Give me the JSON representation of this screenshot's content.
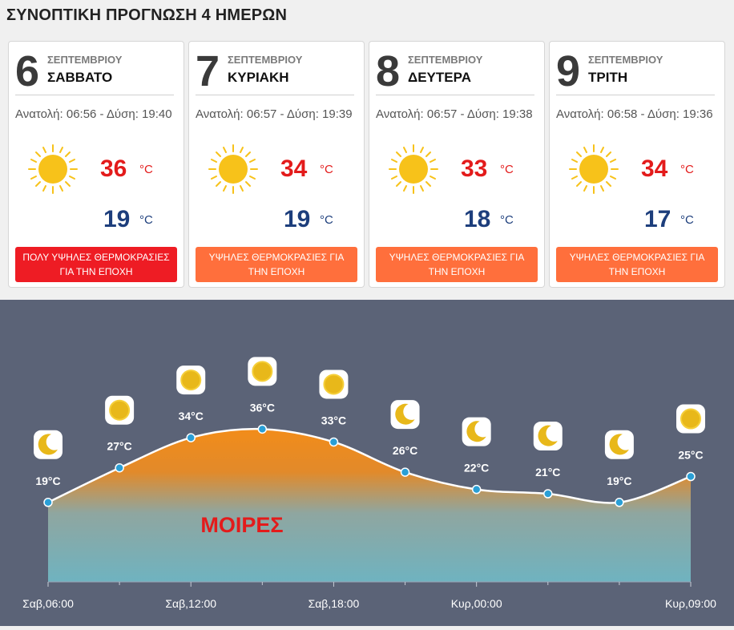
{
  "header": {
    "title": "ΣΥΝΟΠΤΙΚΗ ΠΡΟΓΝΩΣΗ 4 ΗΜΕΡΩΝ"
  },
  "days": [
    {
      "day": "6",
      "month": "ΣΕΠΤΕΜΒΡΙΟΥ",
      "weekday": "ΣΑΒΒΑΤΟ",
      "sun": "Ανατολή: 06:56 - Δύση: 19:40",
      "icon": "sun-icon",
      "max": "36",
      "min": "19",
      "unit": "°C",
      "warning": "ΠΟΛΥ ΥΨΗΛΕΣ ΘΕΡΜΟΚΡΑΣΙΕΣ ΓΙΑ ΤΗΝ ΕΠΟΧΗ",
      "warning_color": "#ee1c24"
    },
    {
      "day": "7",
      "month": "ΣΕΠΤΕΜΒΡΙΟΥ",
      "weekday": "ΚΥΡΙΑΚΗ",
      "sun": "Ανατολή: 06:57 - Δύση: 19:39",
      "icon": "sun-icon",
      "max": "34",
      "min": "19",
      "unit": "°C",
      "warning": "ΥΨΗΛΕΣ ΘΕΡΜΟΚΡΑΣΙΕΣ ΓΙΑ ΤΗΝ ΕΠΟΧΗ",
      "warning_color": "#ff6f3c"
    },
    {
      "day": "8",
      "month": "ΣΕΠΤΕΜΒΡΙΟΥ",
      "weekday": "ΔΕΥΤΕΡΑ",
      "sun": "Ανατολή: 06:57 - Δύση: 19:38",
      "icon": "sun-icon",
      "max": "33",
      "min": "18",
      "unit": "°C",
      "warning": "ΥΨΗΛΕΣ ΘΕΡΜΟΚΡΑΣΙΕΣ ΓΙΑ ΤΗΝ ΕΠΟΧΗ",
      "warning_color": "#ff6f3c"
    },
    {
      "day": "9",
      "month": "ΣΕΠΤΕΜΒΡΙΟΥ",
      "weekday": "ΤΡΙΤΗ",
      "sun": "Ανατολή: 06:58 - Δύση: 19:36",
      "icon": "sun-icon",
      "max": "34",
      "min": "17",
      "unit": "°C",
      "warning": "ΥΨΗΛΕΣ ΘΕΡΜΟΚΡΑΣΙΕΣ ΓΙΑ ΤΗΝ ΕΠΟΧΗ",
      "warning_color": "#ff6f3c"
    }
  ],
  "graph": {
    "watermark": "ΜΟΙΡΕΣ",
    "background": "#5b6377",
    "line_color": "#ffffff",
    "point_color": "#2a9fd6",
    "x_labels": [
      "Σαβ,06:00",
      "Σαβ,12:00",
      "Σαβ,18:00",
      "Κυρ,00:00",
      "Κυρ,09:00"
    ],
    "chart_data": {
      "type": "area",
      "x": [
        "Σαβ,06:00",
        "Σαβ,09:00",
        "Σαβ,12:00",
        "Σαβ,15:00",
        "Σαβ,18:00",
        "Σαβ,21:00",
        "Κυρ,00:00",
        "Κυρ,03:00",
        "Κυρ,06:00",
        "Κυρ,09:00"
      ],
      "values": [
        19,
        27,
        34,
        36,
        33,
        26,
        22,
        21,
        19,
        25
      ],
      "labels": [
        "19°C",
        "27°C",
        "34°C",
        "36°C",
        "33°C",
        "26°C",
        "22°C",
        "21°C",
        "19°C",
        "25°C"
      ],
      "icons": [
        "moon-icon",
        "sun-icon",
        "sun-icon",
        "sun-icon",
        "sun-icon",
        "moon-icon",
        "moon-icon",
        "moon-icon",
        "moon-icon",
        "sun-icon"
      ]
    }
  }
}
